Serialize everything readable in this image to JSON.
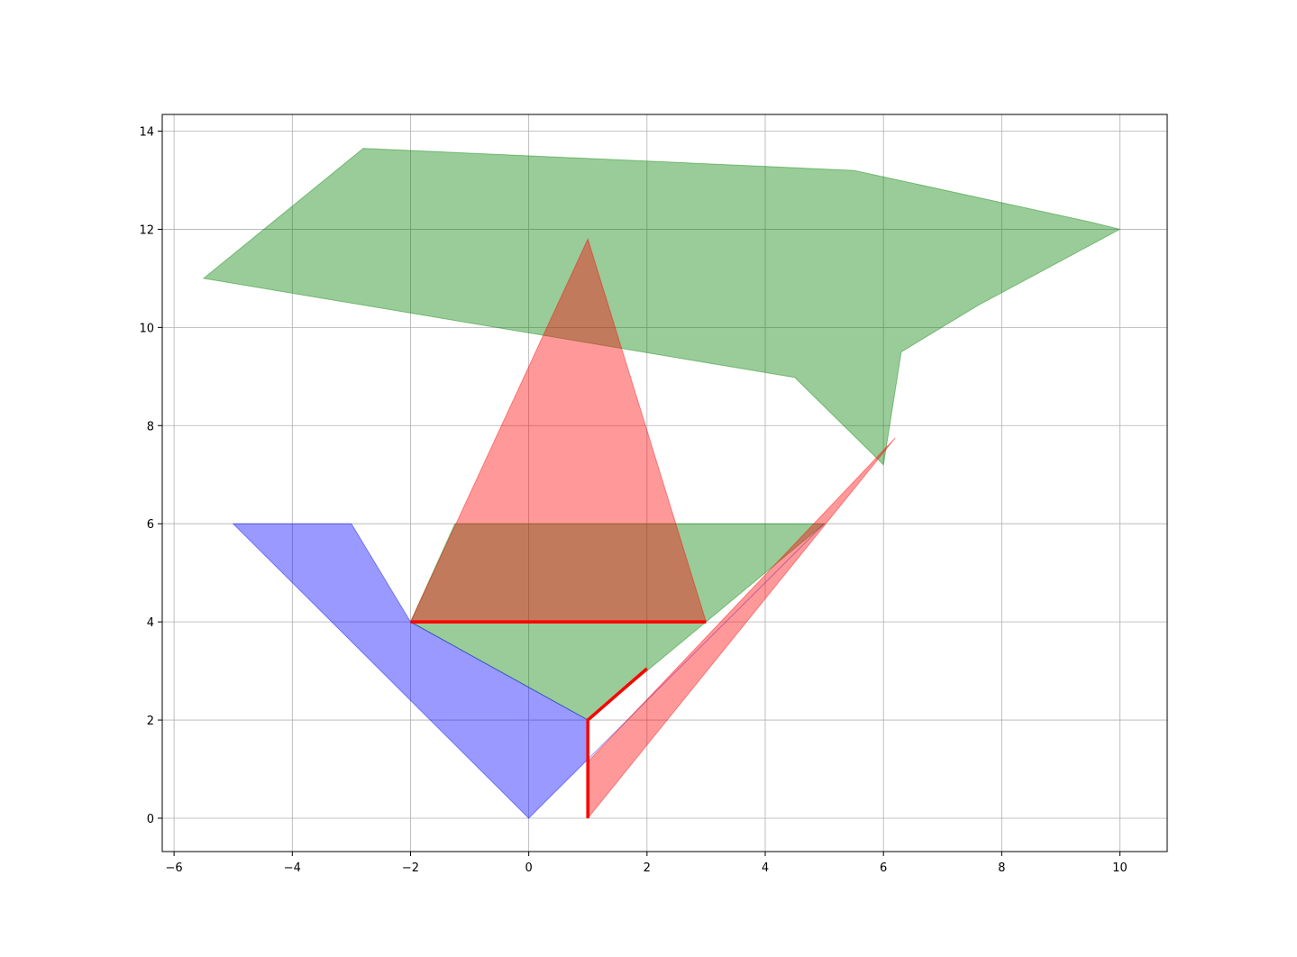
{
  "chart_data": {
    "type": "area",
    "title": "",
    "xlabel": "",
    "ylabel": "",
    "xlim": [
      -6.2,
      10.8
    ],
    "ylim": [
      -0.68,
      14.34
    ],
    "grid": true,
    "x_ticks": [
      -6,
      -4,
      -2,
      0,
      2,
      4,
      6,
      8,
      10
    ],
    "x_tick_labels": [
      "−6",
      "−4",
      "−2",
      "0",
      "2",
      "4",
      "6",
      "8",
      "10"
    ],
    "y_ticks": [
      0,
      2,
      4,
      6,
      8,
      10,
      12,
      14
    ],
    "y_tick_labels": [
      "0",
      "2",
      "4",
      "6",
      "8",
      "10",
      "12",
      "14"
    ],
    "polygons": [
      {
        "color": "#008000",
        "alpha": 0.4,
        "points": [
          [
            -5.5,
            11.0
          ],
          [
            -2.8,
            13.65
          ],
          [
            5.5,
            13.2
          ],
          [
            9.5,
            12.15
          ],
          [
            10.0,
            12.0
          ],
          [
            7.6,
            10.45
          ],
          [
            6.3,
            9.5
          ],
          [
            6.0,
            7.2
          ],
          [
            4.5,
            8.98
          ],
          [
            -5.5,
            11.0
          ]
        ]
      },
      {
        "color": "#008000",
        "alpha": 0.4,
        "points": [
          [
            -2.0,
            4.0
          ],
          [
            -1.25,
            6.0
          ],
          [
            5.0,
            6.0
          ],
          [
            1.0,
            2.0
          ],
          [
            -2.0,
            4.0
          ]
        ]
      },
      {
        "color": "#0000ff",
        "alpha": 0.4,
        "points": [
          [
            -5.0,
            6.0
          ],
          [
            -3.0,
            6.0
          ],
          [
            -2.0,
            4.0
          ],
          [
            1.0,
            2.0
          ],
          [
            1.0,
            1.2
          ],
          [
            5.0,
            6.0
          ],
          [
            1.0,
            1.2
          ],
          [
            0.0,
            0.0
          ],
          [
            -5.0,
            6.0
          ]
        ]
      },
      {
        "color": "#ff0000",
        "alpha": 0.4,
        "points": [
          [
            -2.0,
            4.0
          ],
          [
            1.0,
            11.8
          ],
          [
            3.0,
            4.0
          ],
          [
            -2.0,
            4.0
          ]
        ]
      },
      {
        "color": "#ff0000",
        "alpha": 0.4,
        "points": [
          [
            1.0,
            1.15
          ],
          [
            1.0,
            0.0
          ],
          [
            6.2,
            7.75
          ],
          [
            1.0,
            1.15
          ]
        ]
      }
    ],
    "lines": [
      {
        "color": "#ff0000",
        "points": [
          [
            -2.0,
            4.0
          ],
          [
            3.0,
            4.0
          ]
        ]
      },
      {
        "color": "#ff0000",
        "points": [
          [
            1.0,
            0.0
          ],
          [
            1.0,
            2.0
          ],
          [
            2.0,
            3.05
          ]
        ]
      }
    ]
  }
}
